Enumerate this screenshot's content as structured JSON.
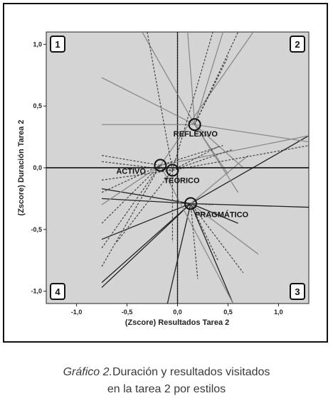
{
  "chart_data": {
    "type": "line",
    "xlabel": "(Zscore) Resultados Tarea 2",
    "ylabel": "(Zscore) Duración Tarea 2",
    "xlim": [
      -1.3,
      1.3
    ],
    "ylim": [
      -1.1,
      1.1
    ],
    "xticks": [
      -1.0,
      -0.5,
      0.0,
      0.5,
      1.0
    ],
    "yticks": [
      -1.0,
      -0.5,
      0.0,
      0.5,
      1.0
    ],
    "xtick_labels": [
      "-1,0",
      "-0,5",
      "0,0",
      "0,5",
      "1,0"
    ],
    "ytick_labels": [
      "-1,0",
      "-0,5",
      "0,0",
      "0,5",
      "1,0"
    ],
    "reference_lines": {
      "x": 0.0,
      "y": 0.0
    },
    "grid": false,
    "plot_background": "#d4d4d4",
    "quadrants": [
      {
        "label": "1",
        "position": "top-left"
      },
      {
        "label": "2",
        "position": "top-right"
      },
      {
        "label": "3",
        "position": "bottom-right"
      },
      {
        "label": "4",
        "position": "bottom-left"
      }
    ],
    "centroids": [
      {
        "name": "ACTIVO",
        "x": -0.17,
        "y": 0.02
      },
      {
        "name": "TEÓRICO",
        "x": -0.05,
        "y": -0.02
      },
      {
        "name": "REFLEXIVO",
        "x": 0.17,
        "y": 0.35
      },
      {
        "name": "PRAGMÁTICO",
        "x": 0.13,
        "y": -0.29
      }
    ],
    "series": [
      {
        "style": "solid",
        "color": "#222222",
        "segments": [
          [
            -0.75,
            -0.93,
            0.13,
            -0.29
          ],
          [
            -0.75,
            -0.97,
            0.13,
            -0.29
          ],
          [
            -0.75,
            -0.58,
            0.13,
            -0.29
          ],
          [
            -0.75,
            -0.25,
            0.13,
            -0.29
          ],
          [
            -0.75,
            -0.17,
            0.13,
            -0.29
          ],
          [
            -0.1,
            -1.1,
            0.13,
            -0.29
          ],
          [
            0.13,
            -0.29,
            0.55,
            -1.1
          ],
          [
            0.13,
            -0.29,
            1.3,
            0.26
          ],
          [
            0.13,
            -0.29,
            1.3,
            -0.32
          ],
          [
            0.13,
            -0.29,
            0.6,
            -0.45
          ],
          [
            -1.3,
            0.0,
            1.3,
            0.0
          ],
          [
            0.0,
            -1.1,
            0.0,
            1.1
          ]
        ]
      },
      {
        "style": "solid",
        "color": "#8a8a8a",
        "segments": [
          [
            -0.35,
            1.1,
            0.17,
            0.35
          ],
          [
            0.1,
            1.1,
            0.17,
            0.35
          ],
          [
            0.45,
            1.1,
            0.17,
            0.35
          ],
          [
            0.17,
            0.35,
            0.65,
            0.0
          ],
          [
            0.17,
            0.35,
            0.6,
            -0.2
          ],
          [
            0.17,
            0.35,
            1.3,
            0.21
          ],
          [
            -0.75,
            0.35,
            0.17,
            0.35
          ],
          [
            -0.75,
            0.73,
            0.17,
            0.35
          ],
          [
            0.17,
            0.35,
            0.5,
            -0.05
          ],
          [
            -0.17,
            0.02,
            1.3,
            0.26
          ],
          [
            -0.17,
            0.02,
            0.75,
            1.1
          ],
          [
            -0.75,
            -0.3,
            -0.17,
            0.02
          ],
          [
            -0.17,
            0.02,
            0.55,
            -1.1
          ],
          [
            0.13,
            -0.29,
            0.8,
            -0.7
          ],
          [
            0.13,
            -0.29,
            0.7,
            0.1
          ]
        ]
      },
      {
        "style": "dashed",
        "color": "#444444",
        "segments": [
          [
            -0.75,
            -0.8,
            -0.17,
            0.02
          ],
          [
            -0.75,
            -0.65,
            -0.17,
            0.02
          ],
          [
            -0.75,
            -0.45,
            -0.17,
            0.02
          ],
          [
            -0.75,
            -0.2,
            -0.17,
            0.02
          ],
          [
            -0.75,
            0.05,
            -0.05,
            -0.02
          ],
          [
            -0.05,
            -0.02,
            0.4,
            0.17
          ],
          [
            -0.05,
            -0.02,
            0.55,
            0.15
          ],
          [
            -0.05,
            -0.02,
            0.35,
            1.1
          ],
          [
            -0.05,
            -0.02,
            -0.05,
            -0.6
          ],
          [
            -0.75,
            -0.1,
            -0.05,
            -0.02
          ],
          [
            -0.17,
            0.02,
            0.45,
            0.18
          ],
          [
            -0.3,
            1.1,
            -0.05,
            -0.02
          ],
          [
            0.13,
            -0.29,
            0.4,
            -0.75
          ],
          [
            0.13,
            -0.29,
            0.65,
            -0.85
          ],
          [
            0.13,
            -0.29,
            0.2,
            -0.9
          ],
          [
            -0.75,
            0.1,
            -0.17,
            0.02
          ],
          [
            -0.6,
            -0.6,
            -0.05,
            -0.02
          ],
          [
            0.17,
            0.35,
            0.6,
            1.1
          ],
          [
            0.17,
            0.35,
            0.5,
            0.9
          ],
          [
            -0.05,
            -0.02,
            1.3,
            0.18
          ],
          [
            0.13,
            -0.29,
            0.35,
            -0.3
          ]
        ]
      }
    ]
  },
  "caption": {
    "prefix": "Gráfico 2.",
    "line1_rest": "Duración y resultados visitados",
    "line2": "en la tarea 2 por estilos"
  }
}
